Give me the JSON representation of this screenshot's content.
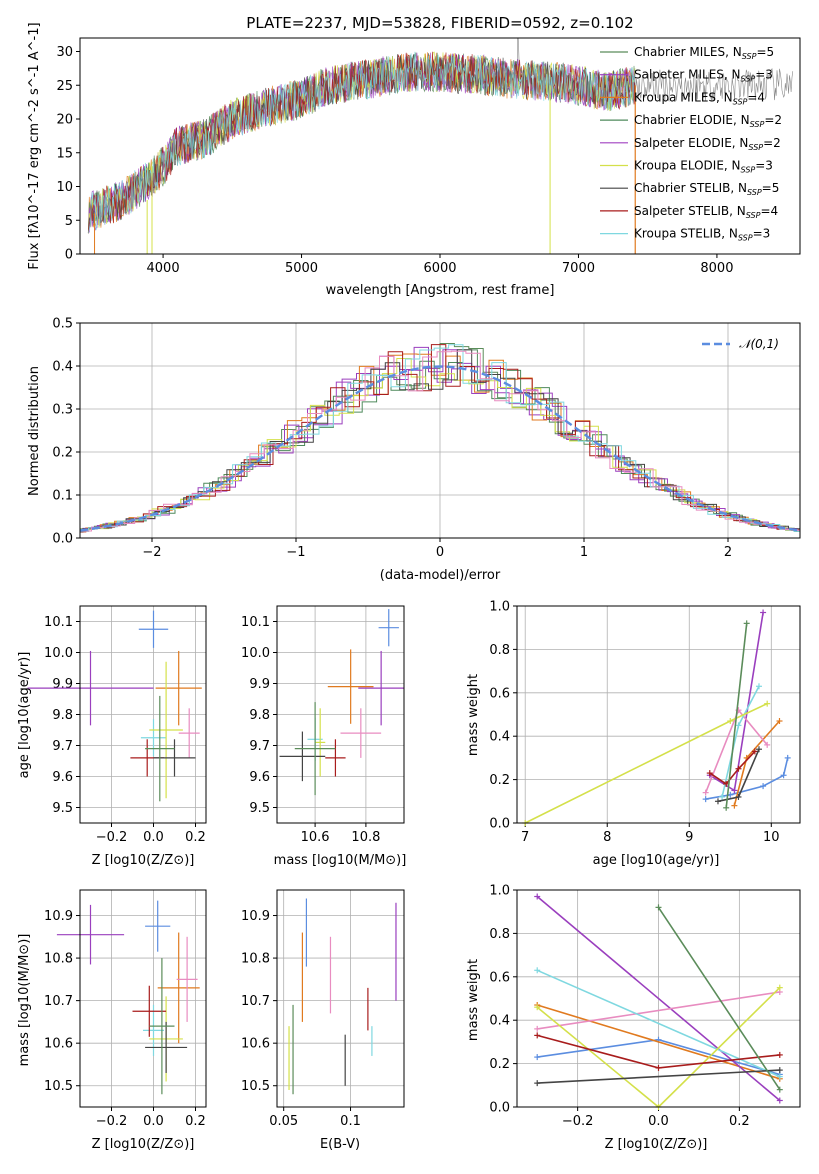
{
  "colors": {
    "Chabrier MILES": "#5b8c5a",
    "Salpeter MILES": "#9a3fbe",
    "Kroupa MILES": "#e07a1f",
    "Chabrier ELODIE": "#4f8a5c",
    "Salpeter ELODIE": "#a040c0",
    "Kroupa ELODIE": "#d4e04a",
    "Chabrier STELIB": "#444444",
    "Salpeter STELIB": "#a81c1c",
    "Kroupa STELIB": "#7fd8e0",
    "extra_blue": "#5b8de0",
    "extra_pink": "#e88cc0",
    "normal": "#5b8de0"
  },
  "chart_data": [
    {
      "type": "line",
      "title": "PLATE=2237, MJD=53828, FIBERID=0592, z=0.102",
      "xlabel": "wavelength [Angstrom, rest frame]",
      "ylabel": "Flux [fλ10^-17 erg cm^-2 s^-1 A^-1]",
      "xlim": [
        3400,
        8600
      ],
      "ylim": [
        0,
        32
      ],
      "xticks": [
        4000,
        5000,
        6000,
        7000,
        8000
      ],
      "yticks": [
        0,
        5,
        10,
        15,
        20,
        25,
        30
      ],
      "legend_position": "top-right",
      "legend": [
        "Chabrier MILES, N_SSP=5",
        "Salpeter MILES, N_SSP=3",
        "Kroupa MILES, N_SSP=4",
        "Chabrier ELODIE, N_SSP=2",
        "Salpeter ELODIE, N_SSP=2",
        "Kroupa ELODIE, N_SSP=3",
        "Chabrier STELIB, N_SSP=5",
        "Salpeter STELIB, N_SSP=4",
        "Kroupa STELIB, N_SSP=3"
      ],
      "legend_name": [
        "Chabrier MILES, N",
        "Salpeter MILES, N",
        "Kroupa MILES, N",
        "Chabrier ELODIE, N",
        "Salpeter ELODIE, N",
        "Kroupa ELODIE, N",
        "Chabrier STELIB, N",
        "Salpeter STELIB, N",
        "Kroupa STELIB, N"
      ],
      "legend_sub": "SSP",
      "legend_val": [
        "=5",
        "=3",
        "=4",
        "=2",
        "=2",
        "=3",
        "=5",
        "=4",
        "=3"
      ],
      "legend_colors": [
        "#5b8c5a",
        "#9a3fbe",
        "#e07a1f",
        "#4f8a5c",
        "#a040c0",
        "#d4e04a",
        "#444444",
        "#a81c1c",
        "#7fd8e0"
      ],
      "continuum": {
        "x": [
          3450,
          3700,
          3900,
          4000,
          4100,
          4300,
          4500,
          4800,
          5000,
          5200,
          5500,
          5800,
          6000,
          6300,
          6500,
          6800,
          7000,
          7200,
          7400
        ],
        "y": [
          6,
          8,
          11,
          13,
          16,
          17,
          20,
          22,
          23,
          25,
          26,
          27,
          27,
          26.5,
          26,
          25.5,
          25,
          24,
          25
        ]
      }
    },
    {
      "type": "histogram",
      "xlabel": "(data-model)/error",
      "ylabel": "Normed distribution",
      "xlim": [
        -2.5,
        2.5
      ],
      "ylim": [
        0,
        0.5
      ],
      "xticks": [
        -2,
        -1,
        0,
        1,
        2
      ],
      "yticks": [
        0.0,
        0.1,
        0.2,
        0.3,
        0.4,
        0.5
      ],
      "legend": "𝒩(0,1)",
      "legend_position": "top-right"
    },
    {
      "type": "scatter",
      "xlabel": "Z [log10(Z/Z⊙)]",
      "ylabel": "age  [log10(age/yr)]",
      "xlim": [
        -0.35,
        0.25
      ],
      "ylim": [
        9.45,
        10.15
      ],
      "xticks": [
        -0.2,
        0.0,
        0.2
      ],
      "yticks": [
        9.5,
        9.6,
        9.7,
        9.8,
        9.9,
        10.0,
        10.1
      ]
    },
    {
      "type": "scatter",
      "xlabel": "mass [log10(M/M⊙)]",
      "ylabel": "",
      "xlim": [
        10.45,
        10.95
      ],
      "ylim": [
        9.45,
        10.15
      ],
      "xticks": [
        10.6,
        10.8
      ],
      "yticks": [
        9.5,
        9.6,
        9.7,
        9.8,
        9.9,
        10.0,
        10.1
      ]
    },
    {
      "type": "line",
      "xlabel": "age  [log10(age/yr)]",
      "ylabel": "mass weight",
      "xlim": [
        6.9,
        10.35
      ],
      "ylim": [
        0,
        1
      ],
      "xticks": [
        7,
        8,
        9,
        10
      ],
      "yticks": [
        0.0,
        0.2,
        0.4,
        0.6,
        0.8,
        1.0
      ]
    },
    {
      "type": "scatter",
      "xlabel": "Z [log10(Z/Z⊙)]",
      "ylabel": "mass [log10(M/M⊙)]",
      "xlim": [
        -0.35,
        0.25
      ],
      "ylim": [
        10.45,
        10.96
      ],
      "xticks": [
        -0.2,
        0.0,
        0.2
      ],
      "yticks": [
        10.5,
        10.6,
        10.7,
        10.8,
        10.9
      ]
    },
    {
      "type": "scatter",
      "xlabel": "E(B-V)",
      "ylabel": "",
      "xlim": [
        0.045,
        0.14
      ],
      "ylim": [
        10.45,
        10.96
      ],
      "xticks": [
        0.05,
        0.1
      ],
      "yticks": [
        10.5,
        10.6,
        10.7,
        10.8,
        10.9
      ]
    },
    {
      "type": "line",
      "xlabel": "Z [log10(Z/Z⊙)]",
      "ylabel": "mass weight",
      "xlim": [
        -0.35,
        0.35
      ],
      "ylim": [
        0,
        1
      ],
      "xticks": [
        -0.2,
        0.0,
        0.2
      ],
      "yticks": [
        0.0,
        0.2,
        0.4,
        0.6,
        0.8,
        1.0
      ]
    }
  ]
}
